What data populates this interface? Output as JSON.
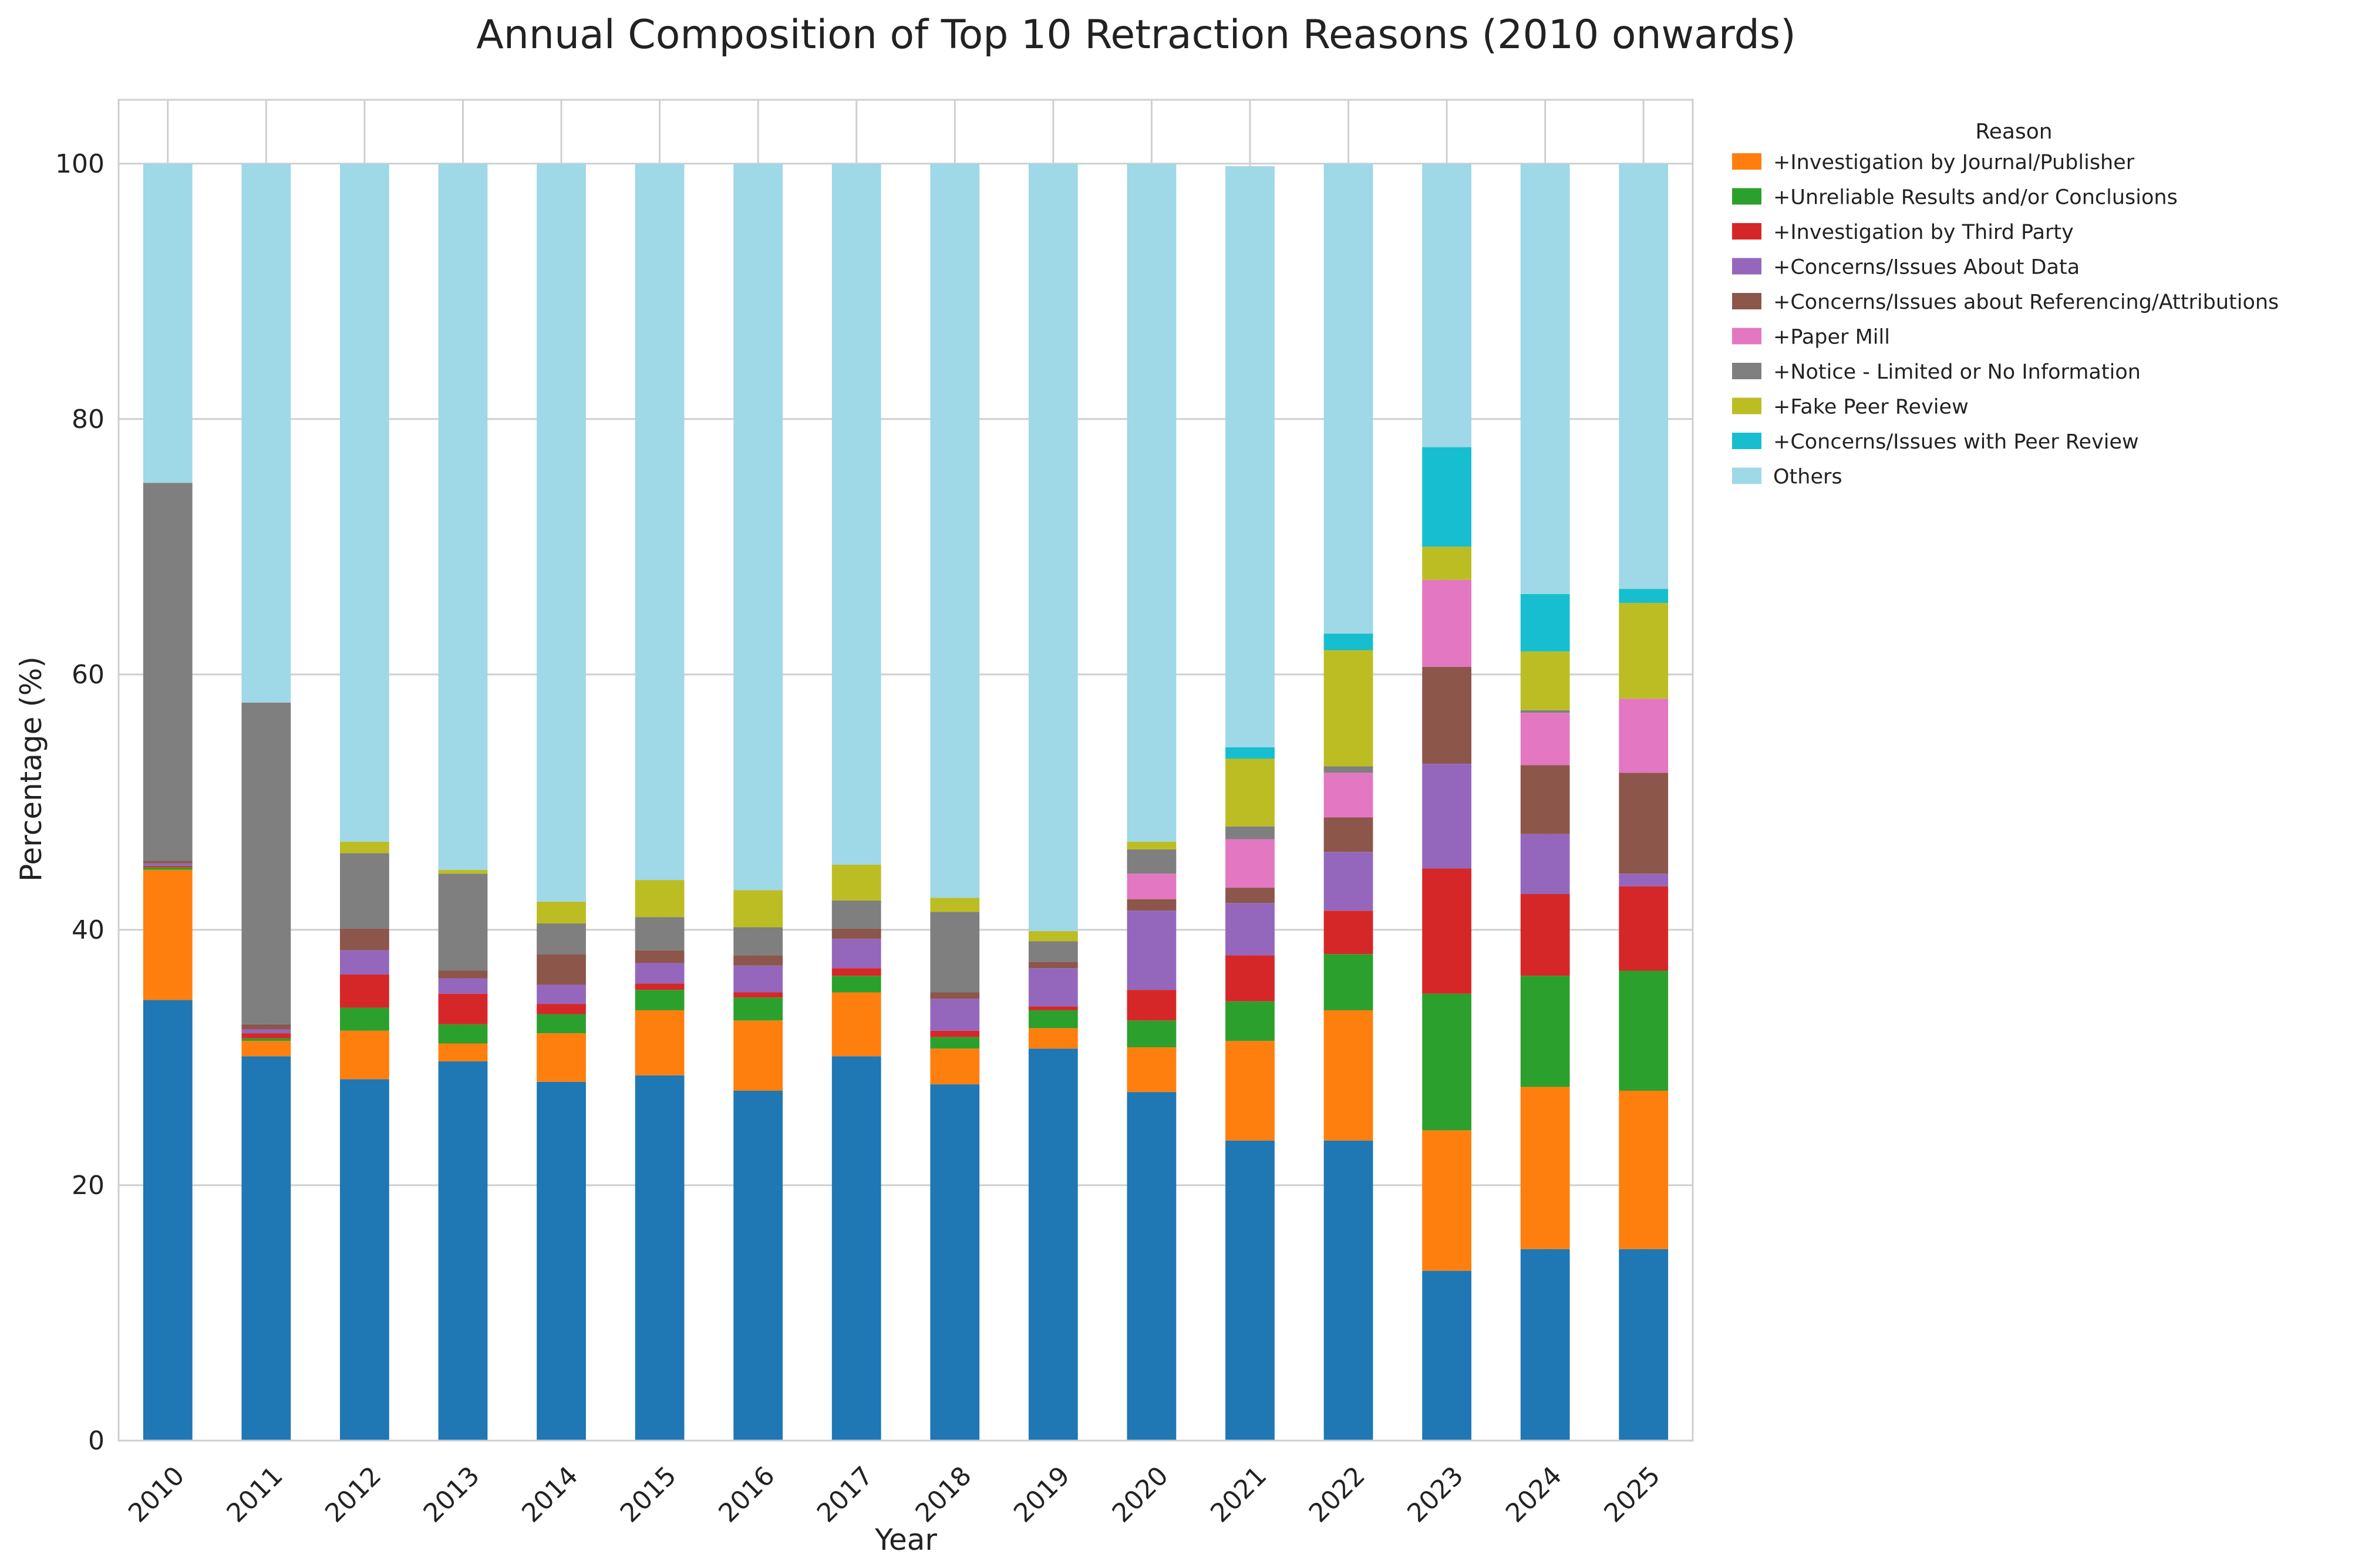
{
  "chart_data": {
    "type": "bar",
    "stacked": true,
    "title": "Annual Composition of Top 10 Retraction Reasons (2010 onwards)",
    "xlabel": "Year",
    "ylabel": "Percentage (%)",
    "ylim": [
      0,
      105
    ],
    "yticks": [
      0,
      20,
      40,
      60,
      80,
      100
    ],
    "grid": true,
    "legend_title": "Reason",
    "legend_position": "outside-right",
    "categories": [
      "2010",
      "2011",
      "2012",
      "2013",
      "2014",
      "2015",
      "2016",
      "2017",
      "2018",
      "2019",
      "2020",
      "2021",
      "2022",
      "2023",
      "2024",
      "2025"
    ],
    "series": [
      {
        "values": [
          34.5,
          30.1,
          28.3,
          29.7,
          28.1,
          28.6,
          27.4,
          30.1,
          27.9,
          30.7,
          27.3,
          23.5,
          23.5,
          13.3,
          15.0,
          15.0
        ],
        "color": "#1f77b4"
      },
      {
        "name": "+Investigation by Journal/Publisher",
        "values": [
          10.2,
          1.2,
          3.8,
          1.4,
          3.8,
          5.1,
          5.5,
          5.0,
          2.8,
          1.6,
          3.5,
          7.8,
          10.2,
          11.0,
          12.7,
          12.4
        ],
        "color": "#ff7f0e"
      },
      {
        "name": "+Unreliable Results and/or Conclusions",
        "values": [
          0.2,
          0.2,
          1.8,
          1.5,
          1.5,
          1.6,
          1.8,
          1.3,
          0.9,
          1.4,
          2.1,
          3.1,
          4.4,
          10.7,
          8.7,
          9.4
        ],
        "color": "#2ca02c"
      },
      {
        "name": "+Investigation by Third Party",
        "values": [
          0.1,
          0.4,
          2.6,
          2.4,
          0.8,
          0.5,
          0.4,
          0.6,
          0.5,
          0.3,
          2.4,
          3.6,
          3.4,
          9.8,
          6.4,
          6.6
        ],
        "color": "#d62728"
      },
      {
        "name": "+Concerns/Issues About Data",
        "values": [
          0.2,
          0.3,
          1.9,
          1.2,
          1.5,
          1.6,
          2.1,
          2.3,
          2.5,
          3.0,
          6.2,
          4.1,
          4.6,
          8.2,
          4.7,
          1.0
        ],
        "color": "#9467bd"
      },
      {
        "name": "+Concerns/Issues about Referencing/Attributions",
        "values": [
          0.2,
          0.4,
          1.7,
          0.6,
          2.4,
          1.0,
          0.8,
          0.8,
          0.5,
          0.5,
          0.9,
          1.2,
          2.7,
          7.6,
          5.4,
          7.9
        ],
        "color": "#8c564b"
      },
      {
        "name": "+Paper Mill",
        "values": [
          0.0,
          0.0,
          0.0,
          0.0,
          0.0,
          0.0,
          0.0,
          0.0,
          0.0,
          0.0,
          2.0,
          3.8,
          3.5,
          6.8,
          4.1,
          5.8
        ],
        "color": "#e377c2"
      },
      {
        "name": "+Notice - Limited or No Information",
        "values": [
          29.6,
          25.2,
          5.9,
          7.6,
          2.4,
          2.6,
          2.2,
          2.2,
          6.3,
          1.6,
          1.9,
          1.0,
          0.5,
          0.0,
          0.2,
          0.0
        ],
        "color": "#7f7f7f"
      },
      {
        "name": "+Fake Peer Review",
        "values": [
          0.0,
          0.0,
          0.9,
          0.3,
          1.7,
          2.9,
          2.9,
          2.8,
          1.1,
          0.8,
          0.6,
          5.3,
          9.1,
          2.6,
          4.6,
          7.5
        ],
        "color": "#bcbd22"
      },
      {
        "name": "+Concerns/Issues with Peer Review",
        "values": [
          0.0,
          0.0,
          0.0,
          0.0,
          0.0,
          0.0,
          0.0,
          0.0,
          0.0,
          0.0,
          0.0,
          0.9,
          1.3,
          7.8,
          4.5,
          1.1
        ],
        "color": "#17becf"
      },
      {
        "name": "Others",
        "values": [
          25.0,
          42.2,
          53.1,
          55.3,
          57.8,
          56.1,
          56.9,
          54.9,
          57.5,
          60.1,
          53.1,
          45.5,
          36.8,
          22.2,
          33.7,
          33.3
        ],
        "color": "#9fd8e6"
      }
    ]
  }
}
